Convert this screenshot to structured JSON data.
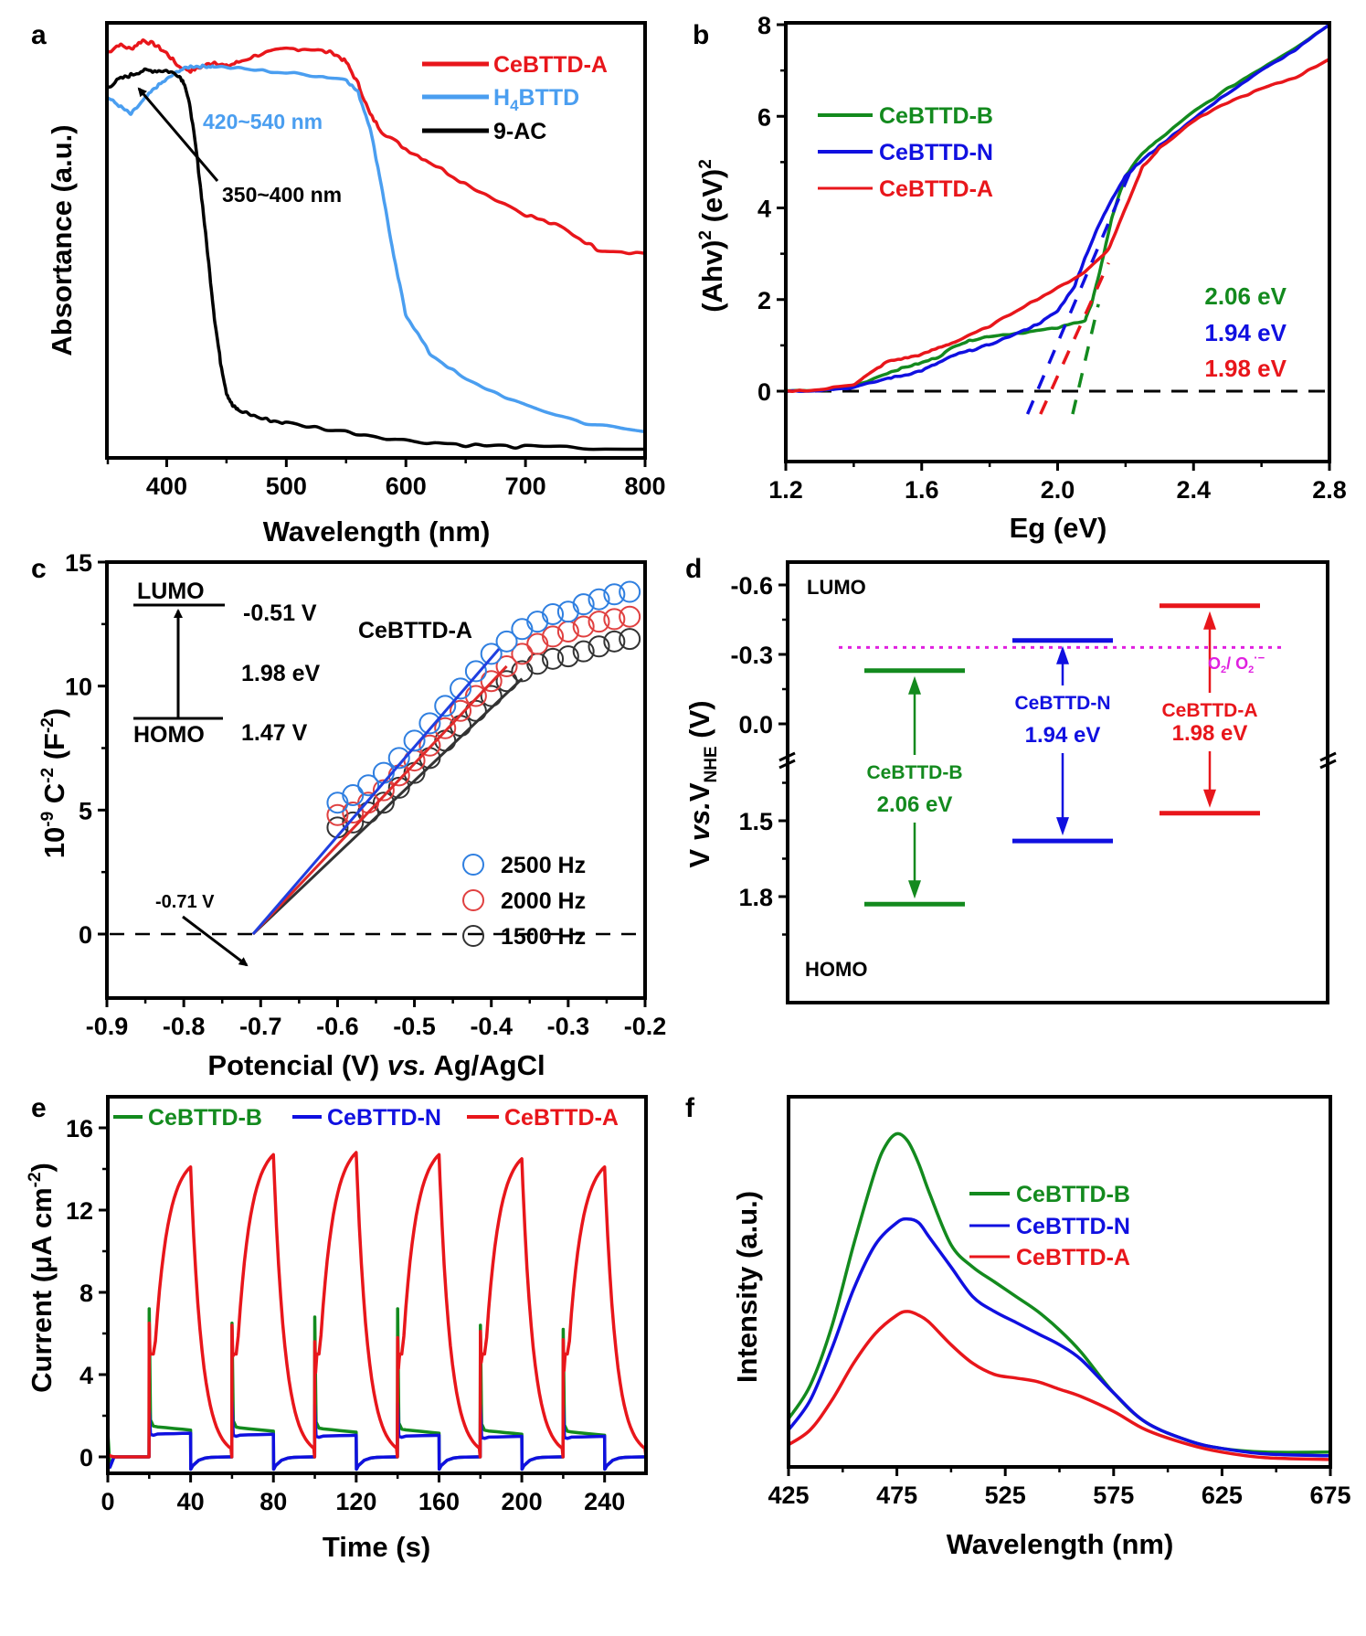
{
  "panels": {
    "a": {
      "label": "a"
    },
    "b": {
      "label": "b"
    },
    "c": {
      "label": "c"
    },
    "d": {
      "label": "d"
    },
    "e": {
      "label": "e"
    },
    "f": {
      "label": "f"
    }
  },
  "colors": {
    "red": "#e8161b",
    "lightblue": "#4a9ef0",
    "black": "#000000",
    "green": "#138a1e",
    "blue": "#1010e0",
    "magenta": "#e020e0",
    "circle_blue": "#2f7fe0",
    "circle_red": "#e04040",
    "circle_gray": "#333333"
  },
  "chart_data": [
    {
      "id": "a",
      "type": "line",
      "title": "",
      "xlabel": "Wavelength (nm)",
      "ylabel": "Absortance (a.u.)",
      "xlim": [
        350,
        800
      ],
      "ylim": [
        0,
        1
      ],
      "xticks": [
        400,
        500,
        600,
        700,
        800
      ],
      "grid": false,
      "legend": {
        "placement": "top-right",
        "entries": [
          "CeBTTD-A",
          "H4BTTD",
          "9-AC"
        ]
      },
      "annotations": [
        "420~540 nm",
        "350~400 nm"
      ],
      "series": [
        {
          "name": "CeBTTD-A",
          "color": "#e8161b",
          "x": [
            350,
            360,
            370,
            380,
            390,
            400,
            410,
            420,
            430,
            440,
            450,
            460,
            480,
            500,
            520,
            540,
            550,
            560,
            570,
            580,
            600,
            620,
            650,
            700,
            730,
            760,
            800
          ],
          "y": [
            0.93,
            0.95,
            0.94,
            0.96,
            0.95,
            0.93,
            0.9,
            0.89,
            0.9,
            0.91,
            0.9,
            0.91,
            0.93,
            0.94,
            0.94,
            0.93,
            0.91,
            0.86,
            0.79,
            0.75,
            0.71,
            0.68,
            0.63,
            0.56,
            0.53,
            0.48,
            0.47
          ]
        },
        {
          "name": "H4BTTD",
          "color": "#4a9ef0",
          "x": [
            350,
            360,
            370,
            380,
            390,
            400,
            410,
            420,
            430,
            440,
            480,
            520,
            550,
            560,
            570,
            580,
            590,
            600,
            620,
            650,
            700,
            750,
            800
          ],
          "y": [
            0.83,
            0.81,
            0.79,
            0.82,
            0.85,
            0.87,
            0.89,
            0.9,
            0.9,
            0.9,
            0.89,
            0.88,
            0.87,
            0.84,
            0.76,
            0.62,
            0.46,
            0.33,
            0.24,
            0.18,
            0.12,
            0.08,
            0.06
          ]
        },
        {
          "name": "9-AC",
          "color": "#000000",
          "x": [
            350,
            360,
            370,
            380,
            390,
            400,
            410,
            415,
            420,
            425,
            430,
            435,
            440,
            445,
            450,
            455,
            460,
            480,
            500,
            550,
            600,
            650,
            700,
            800
          ],
          "y": [
            0.85,
            0.87,
            0.88,
            0.89,
            0.89,
            0.89,
            0.88,
            0.86,
            0.8,
            0.7,
            0.58,
            0.45,
            0.32,
            0.22,
            0.15,
            0.12,
            0.11,
            0.09,
            0.08,
            0.06,
            0.04,
            0.03,
            0.025,
            0.02
          ]
        }
      ]
    },
    {
      "id": "b",
      "type": "line",
      "xlabel": "Eg (eV)",
      "ylabel": "(Ahv)2 (eV)2",
      "xlim": [
        1.2,
        2.8
      ],
      "ylim": [
        -0.6,
        8
      ],
      "xticks": [
        1.2,
        1.6,
        2.0,
        2.4,
        2.8
      ],
      "yticks": [
        0,
        2,
        4,
        6,
        8
      ],
      "grid": false,
      "legend": {
        "placement": "top-left",
        "entries": [
          "CeBTTD-B",
          "CeBTTD-N",
          "CeBTTD-A"
        ]
      },
      "annotations": [
        {
          "text": "2.06 eV",
          "color": "#138a1e"
        },
        {
          "text": "1.94 eV",
          "color": "#1010e0"
        },
        {
          "text": "1.98 eV",
          "color": "#e8161b"
        }
      ],
      "series": [
        {
          "name": "CeBTTD-B",
          "color": "#138a1e",
          "x": [
            1.2,
            1.3,
            1.4,
            1.5,
            1.55,
            1.6,
            1.65,
            1.7,
            1.75,
            1.8,
            1.9,
            2.0,
            2.08,
            2.1,
            2.13,
            2.16,
            2.2,
            2.25,
            2.3,
            2.4,
            2.5,
            2.6,
            2.7,
            2.8
          ],
          "y": [
            0.0,
            0.02,
            0.1,
            0.4,
            0.52,
            0.62,
            0.75,
            1.0,
            1.12,
            1.2,
            1.28,
            1.38,
            1.55,
            1.9,
            2.8,
            3.8,
            4.7,
            5.2,
            5.5,
            6.1,
            6.6,
            7.05,
            7.5,
            8.0
          ]
        },
        {
          "name": "CeBTTD-N",
          "color": "#1010e0",
          "x": [
            1.2,
            1.3,
            1.4,
            1.5,
            1.55,
            1.6,
            1.65,
            1.7,
            1.75,
            1.8,
            1.9,
            1.95,
            2.0,
            2.05,
            2.08,
            2.12,
            2.16,
            2.2,
            2.25,
            2.3,
            2.4,
            2.5,
            2.6,
            2.7,
            2.8
          ],
          "y": [
            0.0,
            0.02,
            0.08,
            0.28,
            0.35,
            0.45,
            0.62,
            0.8,
            0.9,
            1.02,
            1.32,
            1.5,
            1.75,
            2.3,
            2.9,
            3.6,
            4.2,
            4.7,
            5.05,
            5.35,
            5.95,
            6.5,
            7.0,
            7.45,
            8.0
          ]
        },
        {
          "name": "CeBTTD-A",
          "color": "#e8161b",
          "x": [
            1.2,
            1.3,
            1.4,
            1.45,
            1.5,
            1.55,
            1.6,
            1.65,
            1.7,
            1.8,
            1.9,
            2.0,
            2.08,
            2.15,
            2.2,
            2.25,
            2.3,
            2.4,
            2.5,
            2.6,
            2.7,
            2.8
          ],
          "y": [
            0.0,
            0.03,
            0.15,
            0.4,
            0.65,
            0.72,
            0.8,
            0.95,
            1.08,
            1.42,
            1.85,
            2.25,
            2.6,
            3.1,
            4.0,
            4.9,
            5.3,
            5.9,
            6.3,
            6.6,
            6.85,
            7.25
          ]
        }
      ],
      "fit_lines": [
        {
          "name": "CeBTTD-B fit",
          "color": "#138a1e",
          "x0": 2.06,
          "x1": 2.12,
          "y1": 1.9
        },
        {
          "name": "CeBTTD-N fit",
          "color": "#1010e0",
          "x0": 1.94,
          "x1": 2.22,
          "y1": 4.9
        },
        {
          "name": "CeBTTD-A fit",
          "color": "#e8161b",
          "x0": 1.98,
          "x1": 2.15,
          "y1": 2.8
        }
      ]
    },
    {
      "id": "c",
      "type": "scatter",
      "xlabel": "Potencial (V) vs. Ag/AgCl",
      "ylabel": "10-9 C-2 (F-2)",
      "xlim": [
        -0.9,
        -0.2
      ],
      "ylim": [
        -1,
        15
      ],
      "xticks": [
        -0.9,
        -0.8,
        -0.7,
        -0.6,
        -0.5,
        -0.4,
        -0.3,
        -0.2
      ],
      "yticks": [
        0,
        5,
        10,
        15
      ],
      "grid": false,
      "title": "CeBTTD-A",
      "legend": {
        "placement": "bottom-right",
        "entries": [
          "2500 Hz",
          "2000 Hz",
          "1500 Hz"
        ]
      },
      "annotations": [
        "-0.71 V",
        "LUMO",
        "HOMO",
        "-0.51 V",
        "1.98 eV",
        "1.47 V"
      ],
      "flatband_potential": -0.71,
      "series": [
        {
          "name": "2500 Hz",
          "color": "#2f7fe0",
          "x": [
            -0.6,
            -0.58,
            -0.56,
            -0.54,
            -0.52,
            -0.5,
            -0.48,
            -0.46,
            -0.44,
            -0.42,
            -0.4,
            -0.38,
            -0.36,
            -0.34,
            -0.32,
            -0.3,
            -0.28,
            -0.26,
            -0.24,
            -0.22
          ],
          "y": [
            5.3,
            5.6,
            6.0,
            6.5,
            7.1,
            7.8,
            8.5,
            9.2,
            9.9,
            10.6,
            11.3,
            11.8,
            12.3,
            12.6,
            12.9,
            13.0,
            13.3,
            13.5,
            13.7,
            13.8
          ],
          "fit": {
            "x0": -0.71,
            "x1": -0.39,
            "y1": 11.5
          }
        },
        {
          "name": "2000 Hz",
          "color": "#e04040",
          "x": [
            -0.6,
            -0.58,
            -0.56,
            -0.54,
            -0.52,
            -0.5,
            -0.48,
            -0.46,
            -0.44,
            -0.42,
            -0.4,
            -0.38,
            -0.36,
            -0.34,
            -0.32,
            -0.3,
            -0.28,
            -0.26,
            -0.24,
            -0.22
          ],
          "y": [
            4.8,
            4.9,
            5.3,
            5.8,
            6.4,
            7.0,
            7.6,
            8.3,
            9.0,
            9.6,
            10.2,
            10.8,
            11.3,
            11.7,
            12.0,
            12.2,
            12.4,
            12.6,
            12.7,
            12.8
          ],
          "fit": {
            "x0": -0.71,
            "x1": -0.38,
            "y1": 10.8
          }
        },
        {
          "name": "1500 Hz",
          "color": "#333333",
          "x": [
            -0.6,
            -0.58,
            -0.56,
            -0.54,
            -0.52,
            -0.5,
            -0.48,
            -0.46,
            -0.44,
            -0.42,
            -0.4,
            -0.38,
            -0.36,
            -0.34,
            -0.32,
            -0.3,
            -0.28,
            -0.26,
            -0.24,
            -0.22
          ],
          "y": [
            4.3,
            4.5,
            4.9,
            5.3,
            5.9,
            6.5,
            7.1,
            7.8,
            8.4,
            9.0,
            9.6,
            10.2,
            10.6,
            10.9,
            11.1,
            11.2,
            11.4,
            11.6,
            11.8,
            11.9
          ],
          "fit": {
            "x0": -0.71,
            "x1": -0.36,
            "y1": 10.3
          }
        }
      ]
    },
    {
      "id": "d",
      "type": "bar",
      "title": "",
      "xlabel": "",
      "ylabel": "V vs.VNHE (V)",
      "ytick_labels_upper": [
        "-0.6",
        "-0.3",
        "0.0"
      ],
      "ytick_labels_lower": [
        "1.5",
        "1.8"
      ],
      "ylim_upper": [
        -0.6,
        0.1
      ],
      "ylim_lower": [
        1.15,
        1.95
      ],
      "redox_line": {
        "label": "O2/ O2·−",
        "value": -0.33,
        "color": "#e020e0"
      },
      "level_labels": {
        "top": "LUMO",
        "bottom": "HOMO"
      },
      "materials": [
        {
          "name": "CeBTTD-B",
          "gap": "2.06 eV",
          "lumo": -0.23,
          "homo": 1.83,
          "color": "#138a1e"
        },
        {
          "name": "CeBTTD-N",
          "gap": "1.94 eV",
          "lumo": -0.36,
          "homo": 1.58,
          "color": "#1010e0"
        },
        {
          "name": "CeBTTD-A",
          "gap": "1.98 eV",
          "lumo": -0.51,
          "homo": 1.47,
          "color": "#e8161b"
        }
      ]
    },
    {
      "id": "e",
      "type": "line",
      "xlabel": "Time (s)",
      "ylabel": "Current (μA cm-2)",
      "xlim": [
        0,
        260
      ],
      "ylim": [
        -0.8,
        17
      ],
      "xticks": [
        0,
        40,
        80,
        120,
        160,
        200,
        240
      ],
      "yticks": [
        0,
        4,
        8,
        12,
        16
      ],
      "grid": false,
      "legend": {
        "placement": "top",
        "entries": [
          "CeBTTD-B",
          "CeBTTD-N",
          "CeBTTD-A"
        ]
      },
      "light_on_times": [
        20,
        60,
        100,
        140,
        180,
        220
      ],
      "light_off_times": [
        40,
        80,
        120,
        160,
        200,
        240
      ],
      "series": [
        {
          "name": "CeBTTD-B",
          "color": "#138a1e",
          "spike": [
            7.2,
            6.5,
            6.8,
            7.2,
            6.4,
            6.2
          ],
          "plateau": [
            1.3,
            1.25,
            1.2,
            1.15,
            1.1,
            1.05
          ]
        },
        {
          "name": "CeBTTD-N",
          "color": "#1010e0",
          "spike": [
            2.3,
            2.7,
            2.5,
            2.6,
            2.5,
            2.5
          ],
          "plateau": [
            1.1,
            1.05,
            1.0,
            1.0,
            0.95,
            0.95
          ]
        },
        {
          "name": "CeBTTD-A",
          "color": "#e8161b",
          "spike": [
            6.5,
            6.4,
            5.6,
            5.8,
            6.1,
            5.7
          ],
          "peak": [
            14.1,
            14.7,
            14.8,
            14.7,
            14.5,
            14.1
          ]
        }
      ]
    },
    {
      "id": "f",
      "type": "line",
      "xlabel": "Wavelength (nm)",
      "ylabel": "Intensity (a.u.)",
      "xlim": [
        425,
        675
      ],
      "ylim": [
        0,
        1
      ],
      "xticks": [
        425,
        475,
        525,
        575,
        625,
        675
      ],
      "grid": false,
      "legend": {
        "placement": "right",
        "entries": [
          "CeBTTD-B",
          "CeBTTD-N",
          "CeBTTD-A"
        ]
      },
      "series": [
        {
          "name": "CeBTTD-B",
          "color": "#138a1e",
          "x": [
            425,
            435,
            445,
            455,
            465,
            470,
            475,
            480,
            485,
            490,
            500,
            510,
            520,
            530,
            540,
            550,
            560,
            575,
            590,
            610,
            625,
            645,
            675
          ],
          "y": [
            0.13,
            0.22,
            0.38,
            0.6,
            0.8,
            0.87,
            0.9,
            0.88,
            0.82,
            0.74,
            0.6,
            0.54,
            0.5,
            0.46,
            0.42,
            0.37,
            0.31,
            0.2,
            0.12,
            0.07,
            0.05,
            0.04,
            0.04
          ]
        },
        {
          "name": "CeBTTD-N",
          "color": "#1010e0",
          "x": [
            425,
            435,
            445,
            455,
            465,
            475,
            480,
            485,
            490,
            500,
            510,
            520,
            530,
            540,
            550,
            560,
            575,
            590,
            610,
            625,
            645,
            675
          ],
          "y": [
            0.1,
            0.18,
            0.32,
            0.48,
            0.6,
            0.66,
            0.67,
            0.66,
            0.62,
            0.54,
            0.46,
            0.42,
            0.39,
            0.36,
            0.33,
            0.29,
            0.2,
            0.12,
            0.07,
            0.05,
            0.035,
            0.03
          ]
        },
        {
          "name": "CeBTTD-A",
          "color": "#e8161b",
          "x": [
            425,
            435,
            445,
            455,
            465,
            475,
            480,
            485,
            490,
            500,
            510,
            520,
            530,
            540,
            550,
            560,
            575,
            590,
            610,
            625,
            645,
            675
          ],
          "y": [
            0.06,
            0.1,
            0.18,
            0.28,
            0.36,
            0.41,
            0.42,
            0.41,
            0.39,
            0.33,
            0.28,
            0.25,
            0.24,
            0.23,
            0.21,
            0.19,
            0.15,
            0.1,
            0.06,
            0.04,
            0.025,
            0.02
          ]
        }
      ]
    }
  ]
}
